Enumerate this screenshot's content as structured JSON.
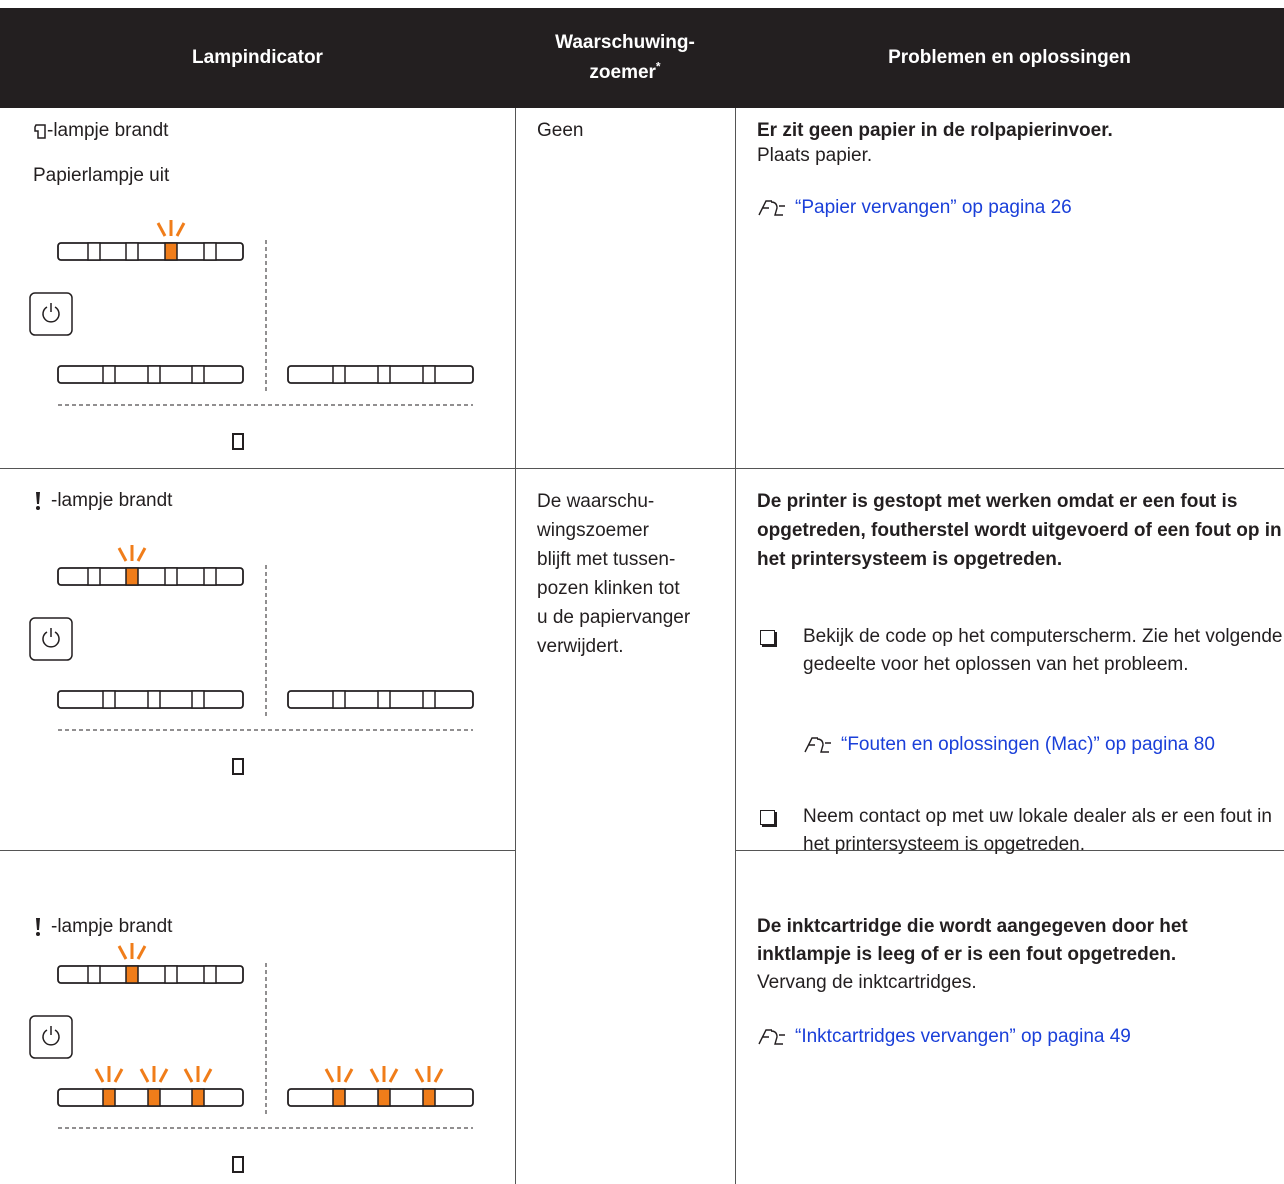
{
  "table": {
    "headers": [
      {
        "text": "Lampindicator"
      },
      {
        "text": "Waarschuwing-zoemer",
        "note": "*"
      },
      {
        "text": "Problemen en oplossingen"
      }
    ],
    "rows": [
      {
        "lamp": [
          "-lampje brandt",
          "Papierlampje uit"
        ],
        "buzzer": [
          "Geen"
        ],
        "solution": {
          "title": "Er zit geen papier in de rolpapierinvoer.",
          "text": "Plaats papier.",
          "link": "“Papier vervangen” op pagina 26"
        }
      },
      {
        "lamp": [
          "-lampje brandt"
        ],
        "buzzer": [
          "De waarschu-",
          "wingszoemer",
          "blijft met tussen-",
          "pozen klinken tot",
          "u de papiervanger",
          "verwijdert."
        ],
        "solution": {
          "title": "De printer is gestopt met werken omdat er een fout is opgetreden, foutherstel wordt uitgevoerd of een fout op in het printersysteem is opgetreden.",
          "bullets": [
            {
              "text": "Bekijk de code op het computerscherm. Zie het volgende gedeelte voor het oplossen van het probleem.",
              "link": "“Fouten en oplossingen (Mac)” op pagina 80"
            },
            {
              "text": "Neem contact op met uw lokale dealer als er een fout in het printersysteem is opgetreden."
            }
          ]
        }
      },
      {
        "lamp": [
          "-lampje brandt"
        ],
        "solution": {
          "title": "De inktcartridge die wordt aangegeven door het inktlampje is leeg of er is een fout opgetreden.",
          "text": "Vervang de inktcartridges.",
          "link": "“Inktcartridges vervangen” op pagina 49"
        }
      }
    ]
  }
}
